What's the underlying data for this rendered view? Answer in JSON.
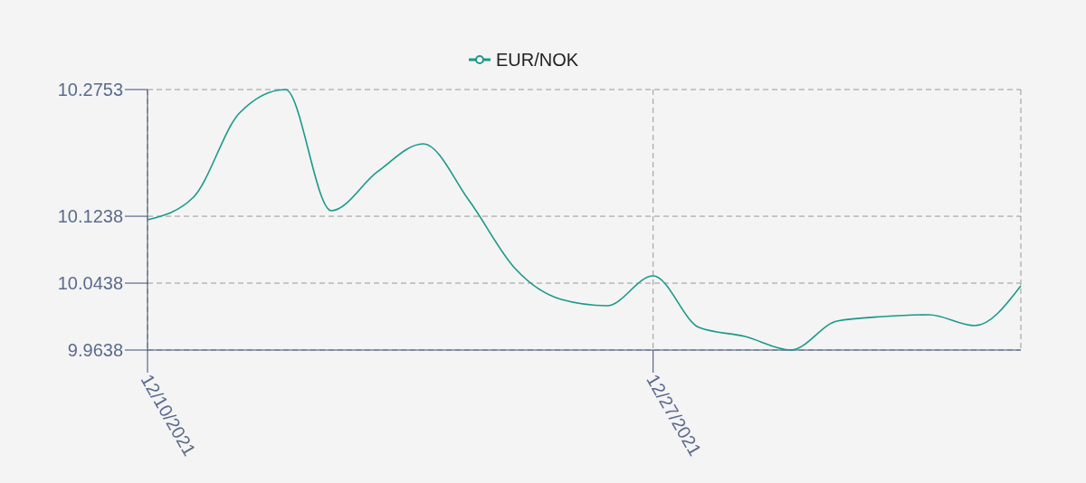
{
  "chart_data": {
    "type": "line",
    "categories": [
      "12/10/2021",
      null,
      null,
      null,
      null,
      null,
      null,
      null,
      null,
      null,
      null,
      "12/27/2021",
      null,
      null,
      null,
      null,
      null,
      null,
      null,
      null
    ],
    "series": [
      {
        "name": "EUR/NOK",
        "color": "#1a998a",
        "values": [
          10.1195,
          10.1466,
          10.2472,
          10.2753,
          10.1304,
          10.1769,
          10.2104,
          10.1422,
          10.0611,
          10.0244,
          10.0168,
          10.0525,
          9.9908,
          9.98,
          9.9638,
          9.9984,
          10.0038,
          10.006,
          9.993,
          10.0406
        ]
      }
    ],
    "ylim": [
      9.9638,
      10.2753
    ],
    "yticks": [
      9.9638,
      10.0438,
      10.1238,
      10.2753
    ],
    "grid": true,
    "legend": "top"
  }
}
